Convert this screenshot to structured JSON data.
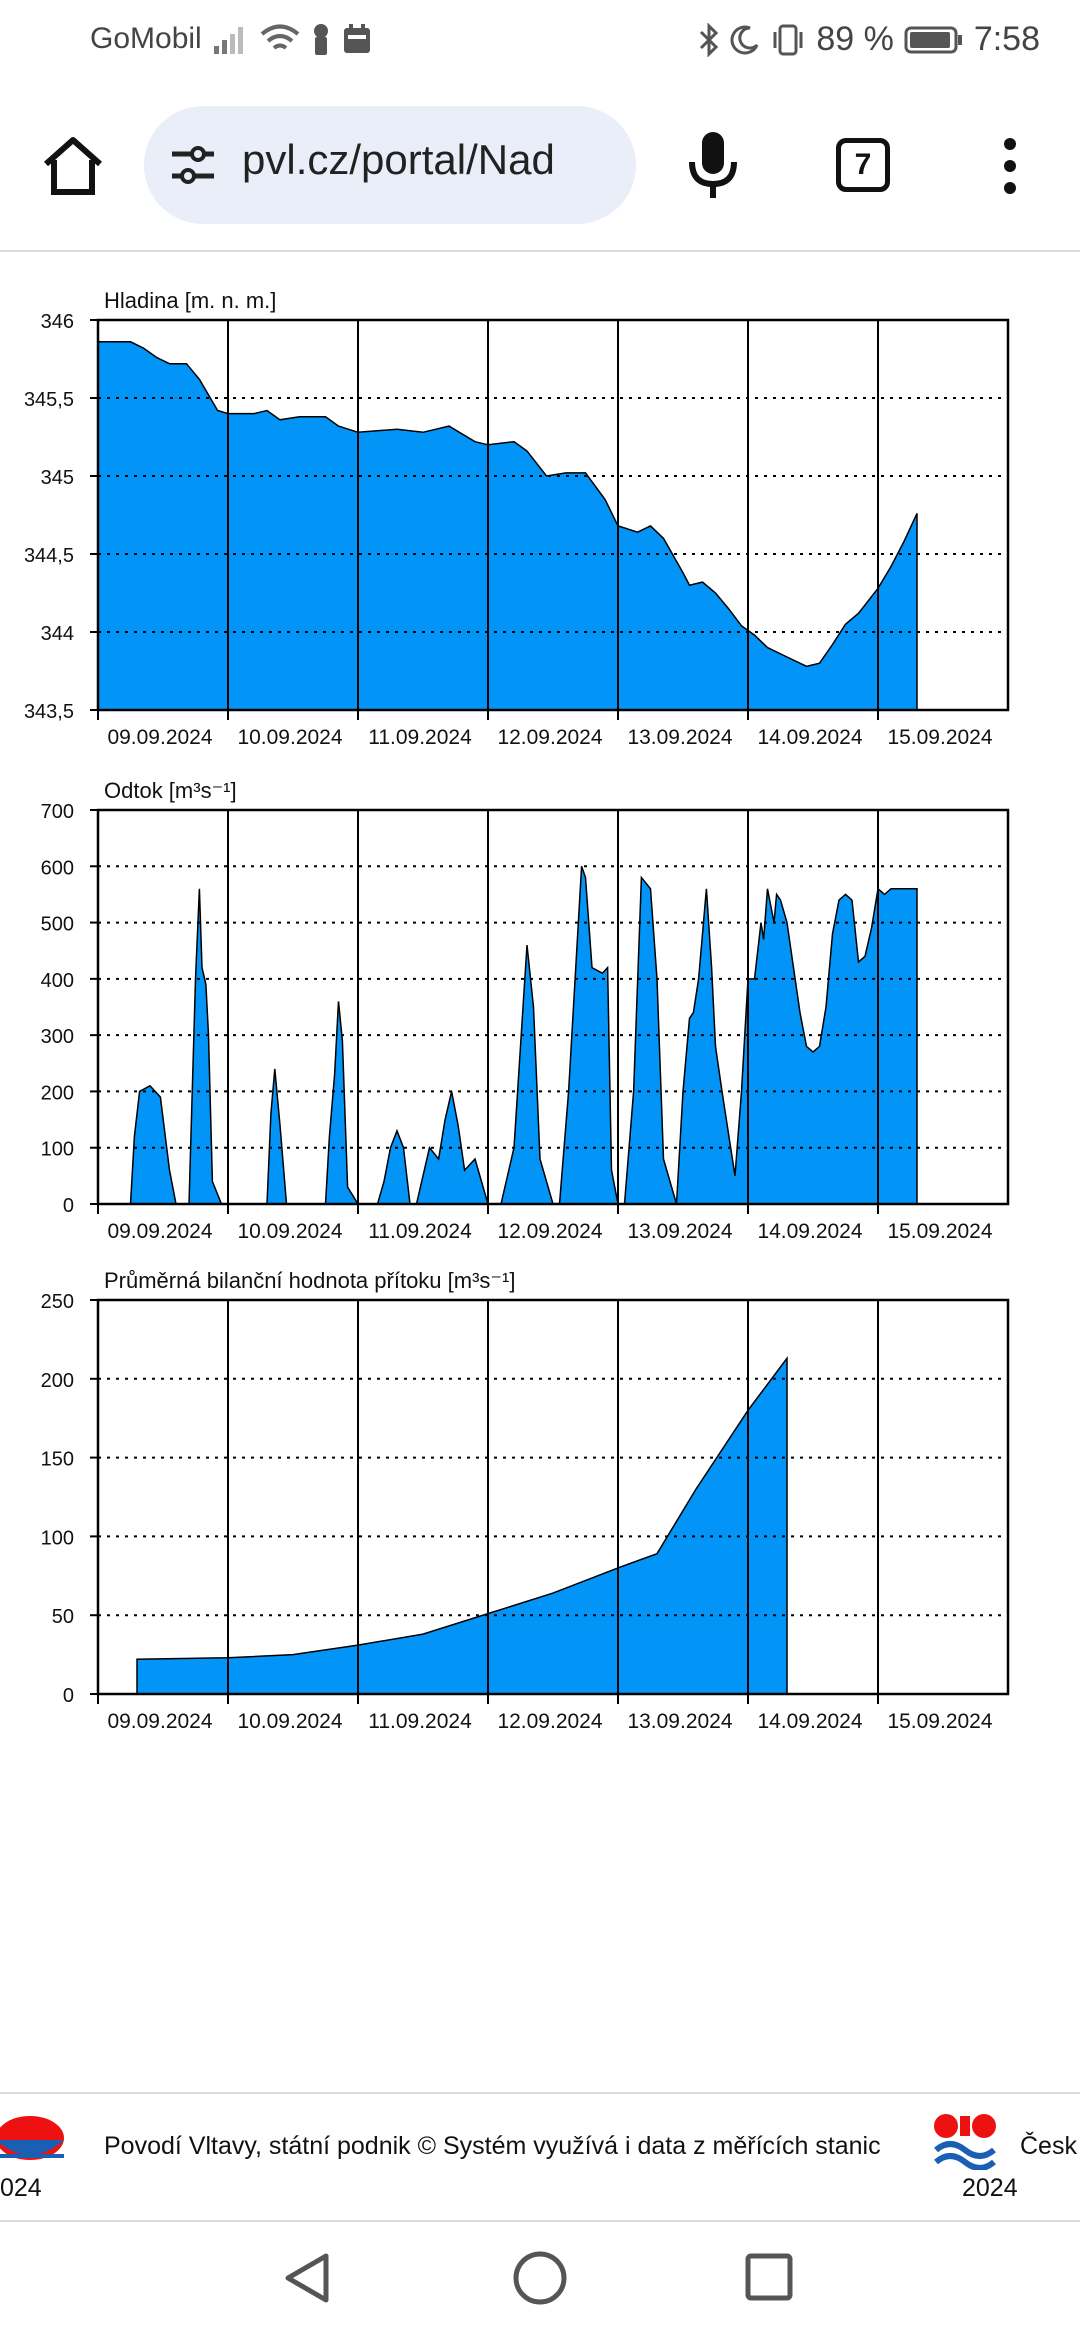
{
  "status_bar": {
    "carrier": "GoMobil",
    "battery": "89 %",
    "time": "7:58",
    "icons": [
      "signal-icon",
      "wifi-icon",
      "key-icon",
      "calendar-icon",
      "bluetooth-icon",
      "moon-icon",
      "vibrate-icon",
      "battery-icon"
    ]
  },
  "browser": {
    "url": "pvl.cz/portal/Nad",
    "tab_count": "7",
    "icons": [
      "home-icon",
      "site-settings-icon",
      "mic-icon",
      "more-vert-icon"
    ]
  },
  "chart_data": [
    {
      "type": "area",
      "title": "Hladina [m. n. m.]",
      "x_ticks": [
        "09.09.2024",
        "10.09.2024",
        "11.09.2024",
        "12.09.2024",
        "13.09.2024",
        "14.09.2024",
        "15.09.2024"
      ],
      "y_ticks": [
        "343,5",
        "344",
        "344,5",
        "345",
        "345,5",
        "346"
      ],
      "ylim": [
        343.5,
        346
      ],
      "xlim": [
        0,
        7
      ],
      "grid": "dotted-horizontal, solid-vertical",
      "color": "#0295f7",
      "x": [
        0,
        0.25,
        0.35,
        0.45,
        0.55,
        0.68,
        0.78,
        0.92,
        1.0,
        1.2,
        1.3,
        1.4,
        1.55,
        1.75,
        1.85,
        2.0,
        2.3,
        2.5,
        2.6,
        2.7,
        2.9,
        3.0,
        3.2,
        3.3,
        3.45,
        3.6,
        3.75,
        3.9,
        4.0,
        4.15,
        4.25,
        4.35,
        4.5,
        4.55,
        4.65,
        4.75,
        4.85,
        4.95,
        5.05,
        5.15,
        5.3,
        5.45,
        5.55,
        5.65,
        5.75,
        5.85,
        6.0,
        6.1,
        6.2,
        6.3
      ],
      "values": [
        345.86,
        345.86,
        345.82,
        345.76,
        345.72,
        345.72,
        345.62,
        345.42,
        345.4,
        345.4,
        345.42,
        345.36,
        345.38,
        345.38,
        345.32,
        345.28,
        345.3,
        345.28,
        345.3,
        345.32,
        345.22,
        345.2,
        345.22,
        345.16,
        345.0,
        345.02,
        345.02,
        344.85,
        344.68,
        344.64,
        344.68,
        344.6,
        344.38,
        344.3,
        344.32,
        344.25,
        344.15,
        344.04,
        343.98,
        343.9,
        343.84,
        343.78,
        343.8,
        343.92,
        344.05,
        344.12,
        344.28,
        344.42,
        344.58,
        344.76
      ]
    },
    {
      "type": "area",
      "title": "Odtok [m³s⁻¹]",
      "x_ticks": [
        "09.09.2024",
        "10.09.2024",
        "11.09.2024",
        "12.09.2024",
        "13.09.2024",
        "14.09.2024",
        "15.09.2024"
      ],
      "y_ticks": [
        "0",
        "100",
        "200",
        "300",
        "400",
        "500",
        "600",
        "700"
      ],
      "ylim": [
        0,
        700
      ],
      "xlim": [
        0,
        7
      ],
      "grid": "dotted-horizontal, solid-vertical",
      "color": "#0295f7",
      "x": [
        0.15,
        0.25,
        0.28,
        0.32,
        0.4,
        0.48,
        0.55,
        0.6,
        0.7,
        0.75,
        0.78,
        0.8,
        0.83,
        0.85,
        0.88,
        0.95,
        0.98,
        1.3,
        1.33,
        1.36,
        1.4,
        1.45,
        1.5,
        1.55,
        1.75,
        1.78,
        1.82,
        1.85,
        1.88,
        1.92,
        2.0,
        2.15,
        2.2,
        2.25,
        2.3,
        2.35,
        2.4,
        2.45,
        2.55,
        2.62,
        2.67,
        2.72,
        2.77,
        2.82,
        2.9,
        3.0,
        3.05,
        3.1,
        3.2,
        3.25,
        3.3,
        3.35,
        3.4,
        3.5,
        3.55,
        3.62,
        3.68,
        3.72,
        3.75,
        3.8,
        3.88,
        3.92,
        3.95,
        4.0,
        4.05,
        4.12,
        4.18,
        4.25,
        4.3,
        4.35,
        4.45,
        4.5,
        4.55,
        4.58,
        4.62,
        4.68,
        4.72,
        4.75,
        4.8,
        4.9,
        4.95,
        5.0,
        5.05,
        5.1,
        5.12,
        5.15,
        5.2,
        5.22,
        5.25,
        5.3,
        5.35,
        5.4,
        5.45,
        5.5,
        5.55,
        5.6,
        5.65,
        5.7,
        5.75,
        5.8,
        5.85,
        5.9,
        5.95,
        6.0,
        6.05,
        6.1,
        6.2,
        6.3
      ],
      "values": [
        0,
        0,
        120,
        200,
        210,
        190,
        60,
        0,
        0,
        400,
        560,
        420,
        390,
        300,
        40,
        0,
        0,
        0,
        160,
        240,
        140,
        0,
        0,
        0,
        0,
        120,
        230,
        360,
        290,
        30,
        0,
        0,
        40,
        100,
        130,
        100,
        0,
        0,
        100,
        80,
        150,
        200,
        140,
        60,
        80,
        0,
        0,
        0,
        100,
        280,
        460,
        350,
        80,
        0,
        0,
        200,
        440,
        600,
        580,
        420,
        410,
        420,
        60,
        0,
        0,
        200,
        580,
        560,
        400,
        80,
        0,
        200,
        330,
        340,
        400,
        560,
        420,
        280,
        200,
        50,
        200,
        400,
        400,
        500,
        470,
        560,
        500,
        550,
        540,
        500,
        420,
        340,
        280,
        270,
        280,
        350,
        480,
        540,
        550,
        540,
        430,
        440,
        490,
        560,
        550,
        560,
        560,
        560
      ]
    },
    {
      "type": "area",
      "title": "Průměrná bilanční hodnota přítoku   [m³s⁻¹]",
      "x_ticks": [
        "09.09.2024",
        "10.09.2024",
        "11.09.2024",
        "12.09.2024",
        "13.09.2024",
        "14.09.2024",
        "15.09.2024"
      ],
      "y_ticks": [
        "0",
        "50",
        "100",
        "150",
        "200",
        "250"
      ],
      "ylim": [
        0,
        250
      ],
      "xlim": [
        0,
        7
      ],
      "grid": "dotted-horizontal, solid-vertical",
      "color": "#0295f7",
      "x": [
        0.3,
        1.0,
        1.5,
        2.0,
        2.5,
        3.0,
        3.5,
        4.0,
        4.3,
        4.6,
        5.0,
        5.3
      ],
      "values": [
        22,
        23,
        25,
        31,
        38,
        51,
        64,
        80,
        89,
        130,
        180,
        213
      ]
    }
  ],
  "footer": {
    "text_main": "Povodí Vltavy, státní podnik ©  Systém využívá i data z měřících stanic",
    "year_left": "024",
    "text_right": "Česk",
    "year_right": "2024",
    "icons": [
      "pvl-logo-icon",
      "chmi-logo-icon"
    ]
  },
  "nav_icons": [
    "back-icon",
    "home-circle-icon",
    "recents-icon"
  ]
}
